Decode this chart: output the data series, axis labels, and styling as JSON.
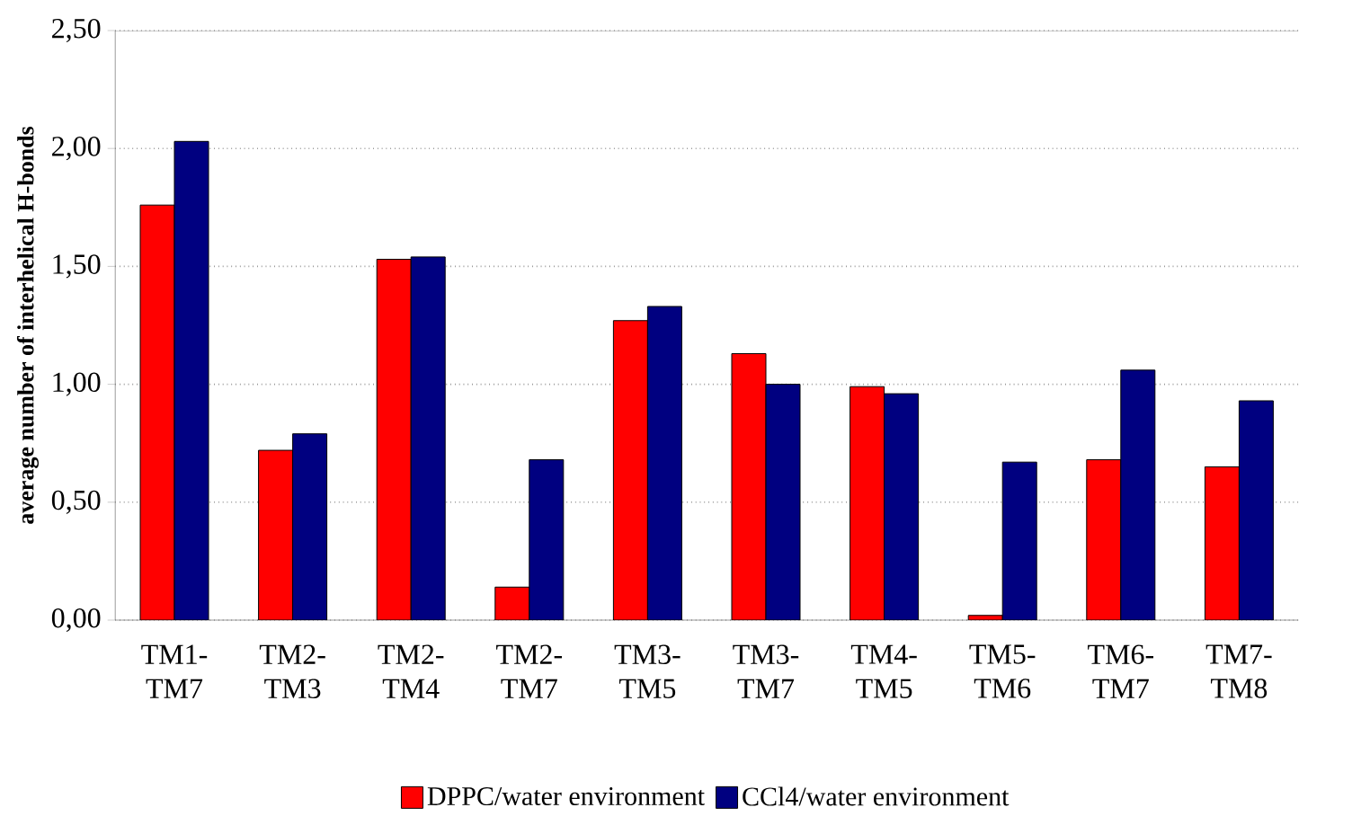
{
  "chart_data": {
    "type": "bar",
    "ylabel": "average number of interhelical H-bonds",
    "categories": [
      "TM1-TM7",
      "TM2-TM3",
      "TM2-TM4",
      "TM2-TM7",
      "TM3-TM5",
      "TM3-TM7",
      "TM4-TM5",
      "TM5-TM6",
      "TM6-TM7",
      "TM7-TM8"
    ],
    "series": [
      {
        "name": "DPPC/water environment",
        "color": "#ff0000",
        "values": [
          1.76,
          0.72,
          1.53,
          0.14,
          1.27,
          1.13,
          0.99,
          0.02,
          0.68,
          0.65
        ]
      },
      {
        "name": "CCl4/water environment",
        "color": "#000080",
        "values": [
          2.03,
          0.79,
          1.54,
          0.68,
          1.33,
          1.0,
          0.96,
          0.67,
          1.06,
          0.93
        ]
      }
    ],
    "ylim": [
      0,
      2.5
    ],
    "yticks": [
      {
        "value": 0,
        "label": "0,00"
      },
      {
        "value": 0.5,
        "label": "0,50"
      },
      {
        "value": 1,
        "label": "1,00"
      },
      {
        "value": 1.5,
        "label": "1,50"
      },
      {
        "value": 2,
        "label": "2,00"
      },
      {
        "value": 2.5,
        "label": "2,50"
      }
    ],
    "grid": "y",
    "legend": "bottom"
  }
}
